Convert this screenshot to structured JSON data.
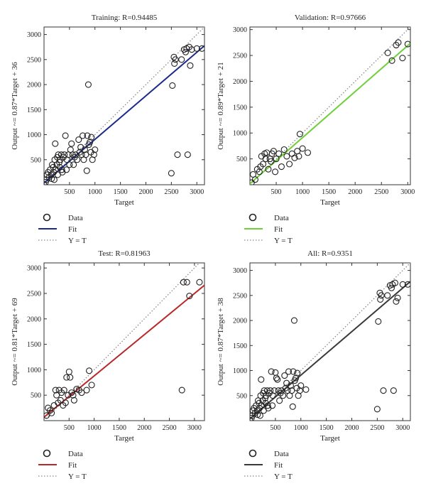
{
  "chart_data": [
    {
      "type": "scatter",
      "title": "Training: R=0.94485",
      "xlabel": "Target",
      "ylabel": "Output ~= 0.87*Target + 36",
      "xlim": [
        0,
        3150
      ],
      "ylim": [
        0,
        3150
      ],
      "xticks": [
        500,
        1000,
        1500,
        2000,
        2500,
        3000
      ],
      "yticks": [
        500,
        1000,
        1500,
        2000,
        2500,
        3000
      ],
      "fit": {
        "slope": 0.87,
        "intercept": 36,
        "color": "#1c2a8c"
      },
      "legend": {
        "data": "Data",
        "fit": "Fit",
        "identity": "Y = T"
      },
      "points": [
        [
          0,
          0
        ],
        [
          30,
          50
        ],
        [
          50,
          100
        ],
        [
          60,
          200
        ],
        [
          80,
          250
        ],
        [
          100,
          150
        ],
        [
          120,
          300
        ],
        [
          140,
          200
        ],
        [
          150,
          120
        ],
        [
          160,
          400
        ],
        [
          180,
          350
        ],
        [
          190,
          250
        ],
        [
          200,
          100
        ],
        [
          210,
          500
        ],
        [
          220,
          820
        ],
        [
          230,
          300
        ],
        [
          250,
          400
        ],
        [
          260,
          550
        ],
        [
          270,
          200
        ],
        [
          280,
          600
        ],
        [
          300,
          450
        ],
        [
          310,
          350
        ],
        [
          320,
          500
        ],
        [
          340,
          600
        ],
        [
          350,
          300
        ],
        [
          360,
          250
        ],
        [
          380,
          550
        ],
        [
          400,
          600
        ],
        [
          420,
          980
        ],
        [
          440,
          300
        ],
        [
          450,
          500
        ],
        [
          480,
          600
        ],
        [
          500,
          400
        ],
        [
          520,
          700
        ],
        [
          540,
          820
        ],
        [
          560,
          600
        ],
        [
          580,
          400
        ],
        [
          600,
          550
        ],
        [
          620,
          600
        ],
        [
          650,
          500
        ],
        [
          680,
          900
        ],
        [
          700,
          650
        ],
        [
          720,
          750
        ],
        [
          740,
          600
        ],
        [
          760,
          980
        ],
        [
          780,
          500
        ],
        [
          800,
          700
        ],
        [
          820,
          600
        ],
        [
          840,
          280
        ],
        [
          850,
          980
        ],
        [
          870,
          2000
        ],
        [
          880,
          800
        ],
        [
          900,
          850
        ],
        [
          920,
          650
        ],
        [
          930,
          950
        ],
        [
          950,
          500
        ],
        [
          980,
          600
        ],
        [
          1000,
          700
        ],
        [
          2500,
          230
        ],
        [
          2520,
          1980
        ],
        [
          2550,
          2550
        ],
        [
          2560,
          2420
        ],
        [
          2580,
          2500
        ],
        [
          2620,
          600
        ],
        [
          2700,
          2500
        ],
        [
          2750,
          2700
        ],
        [
          2780,
          2650
        ],
        [
          2800,
          2720
        ],
        [
          2820,
          600
        ],
        [
          2850,
          2750
        ],
        [
          2870,
          2380
        ],
        [
          2900,
          2700
        ],
        [
          3000,
          2720
        ],
        [
          3100,
          2720
        ]
      ]
    },
    {
      "type": "scatter",
      "title": "Validation: R=0.97666",
      "xlabel": "Target",
      "ylabel": "Output ~= 0.89*Target + 21",
      "xlim": [
        0,
        3050
      ],
      "ylim": [
        0,
        3050
      ],
      "xticks": [
        500,
        1000,
        1500,
        2000,
        2500,
        3000
      ],
      "yticks": [
        500,
        1000,
        1500,
        2000,
        2500,
        3000
      ],
      "fit": {
        "slope": 0.89,
        "intercept": 21,
        "color": "#6fcf3a"
      },
      "legend": {
        "data": "Data",
        "fit": "Fit",
        "identity": "Y = T"
      },
      "points": [
        [
          30,
          40
        ],
        [
          60,
          200
        ],
        [
          100,
          100
        ],
        [
          140,
          300
        ],
        [
          180,
          250
        ],
        [
          200,
          350
        ],
        [
          220,
          550
        ],
        [
          250,
          400
        ],
        [
          280,
          600
        ],
        [
          300,
          500
        ],
        [
          320,
          620
        ],
        [
          350,
          300
        ],
        [
          380,
          500
        ],
        [
          400,
          450
        ],
        [
          420,
          600
        ],
        [
          450,
          650
        ],
        [
          480,
          250
        ],
        [
          500,
          500
        ],
        [
          550,
          600
        ],
        [
          600,
          350
        ],
        [
          650,
          680
        ],
        [
          700,
          550
        ],
        [
          750,
          400
        ],
        [
          800,
          600
        ],
        [
          850,
          520
        ],
        [
          900,
          650
        ],
        [
          930,
          550
        ],
        [
          950,
          980
        ],
        [
          1000,
          700
        ],
        [
          1100,
          620
        ],
        [
          2620,
          2550
        ],
        [
          2700,
          2400
        ],
        [
          2780,
          2700
        ],
        [
          2820,
          2750
        ],
        [
          2900,
          2450
        ],
        [
          3000,
          2720
        ]
      ]
    },
    {
      "type": "scatter",
      "title": "Test: R=0.81963",
      "xlabel": "Target",
      "ylabel": "Output ~= 0.81*Target + 69",
      "xlim": [
        0,
        3200
      ],
      "ylim": [
        0,
        3100
      ],
      "xticks": [
        500,
        1000,
        1500,
        2000,
        2500,
        3000
      ],
      "yticks": [
        500,
        1000,
        1500,
        2000,
        2500,
        3000
      ],
      "fit": {
        "slope": 0.81,
        "intercept": 69,
        "color": "#b82a2a"
      },
      "legend": {
        "data": "Data",
        "fit": "Fit",
        "identity": "Y = T"
      },
      "points": [
        [
          50,
          100
        ],
        [
          80,
          250
        ],
        [
          120,
          200
        ],
        [
          150,
          150
        ],
        [
          200,
          300
        ],
        [
          230,
          600
        ],
        [
          250,
          500
        ],
        [
          280,
          350
        ],
        [
          300,
          600
        ],
        [
          330,
          400
        ],
        [
          350,
          550
        ],
        [
          380,
          300
        ],
        [
          400,
          600
        ],
        [
          430,
          350
        ],
        [
          450,
          850
        ],
        [
          480,
          500
        ],
        [
          500,
          960
        ],
        [
          520,
          850
        ],
        [
          550,
          550
        ],
        [
          580,
          500
        ],
        [
          600,
          400
        ],
        [
          650,
          620
        ],
        [
          700,
          600
        ],
        [
          750,
          550
        ],
        [
          850,
          600
        ],
        [
          900,
          980
        ],
        [
          950,
          700
        ],
        [
          2750,
          600
        ],
        [
          2780,
          2720
        ],
        [
          2850,
          2720
        ],
        [
          2900,
          2450
        ],
        [
          3100,
          2720
        ]
      ]
    },
    {
      "type": "scatter",
      "title": "All: R=0.9351",
      "xlabel": "Target",
      "ylabel": "Output ~= 0.87*Target + 38",
      "xlim": [
        0,
        3150
      ],
      "ylim": [
        0,
        3150
      ],
      "xticks": [
        500,
        1000,
        1500,
        2000,
        2500,
        3000
      ],
      "yticks": [
        500,
        1000,
        1500,
        2000,
        2500,
        3000
      ],
      "fit": {
        "slope": 0.87,
        "intercept": 38,
        "color": "#3a3a3a"
      },
      "legend": {
        "data": "Data",
        "fit": "Fit",
        "identity": "Y = T"
      },
      "points": [
        [
          0,
          0
        ],
        [
          30,
          50
        ],
        [
          50,
          100
        ],
        [
          60,
          200
        ],
        [
          80,
          250
        ],
        [
          100,
          150
        ],
        [
          120,
          300
        ],
        [
          140,
          200
        ],
        [
          150,
          120
        ],
        [
          160,
          400
        ],
        [
          180,
          350
        ],
        [
          190,
          250
        ],
        [
          200,
          100
        ],
        [
          210,
          500
        ],
        [
          220,
          820
        ],
        [
          230,
          300
        ],
        [
          250,
          400
        ],
        [
          260,
          550
        ],
        [
          270,
          200
        ],
        [
          280,
          600
        ],
        [
          300,
          450
        ],
        [
          310,
          350
        ],
        [
          320,
          500
        ],
        [
          340,
          600
        ],
        [
          350,
          300
        ],
        [
          360,
          250
        ],
        [
          380,
          550
        ],
        [
          400,
          600
        ],
        [
          420,
          980
        ],
        [
          440,
          300
        ],
        [
          450,
          500
        ],
        [
          480,
          600
        ],
        [
          500,
          960
        ],
        [
          520,
          850
        ],
        [
          540,
          820
        ],
        [
          560,
          600
        ],
        [
          580,
          400
        ],
        [
          600,
          550
        ],
        [
          620,
          600
        ],
        [
          650,
          500
        ],
        [
          680,
          900
        ],
        [
          700,
          650
        ],
        [
          720,
          750
        ],
        [
          740,
          600
        ],
        [
          760,
          980
        ],
        [
          780,
          500
        ],
        [
          800,
          700
        ],
        [
          820,
          600
        ],
        [
          840,
          280
        ],
        [
          850,
          980
        ],
        [
          870,
          2000
        ],
        [
          880,
          800
        ],
        [
          900,
          850
        ],
        [
          920,
          650
        ],
        [
          930,
          950
        ],
        [
          950,
          500
        ],
        [
          980,
          600
        ],
        [
          1000,
          700
        ],
        [
          1100,
          620
        ],
        [
          2500,
          230
        ],
        [
          2520,
          1980
        ],
        [
          2550,
          2550
        ],
        [
          2560,
          2420
        ],
        [
          2580,
          2500
        ],
        [
          2620,
          600
        ],
        [
          2700,
          2500
        ],
        [
          2750,
          2700
        ],
        [
          2780,
          2650
        ],
        [
          2800,
          2720
        ],
        [
          2820,
          600
        ],
        [
          2850,
          2750
        ],
        [
          2870,
          2380
        ],
        [
          2900,
          2450
        ],
        [
          3000,
          2720
        ],
        [
          3100,
          2720
        ]
      ]
    }
  ]
}
